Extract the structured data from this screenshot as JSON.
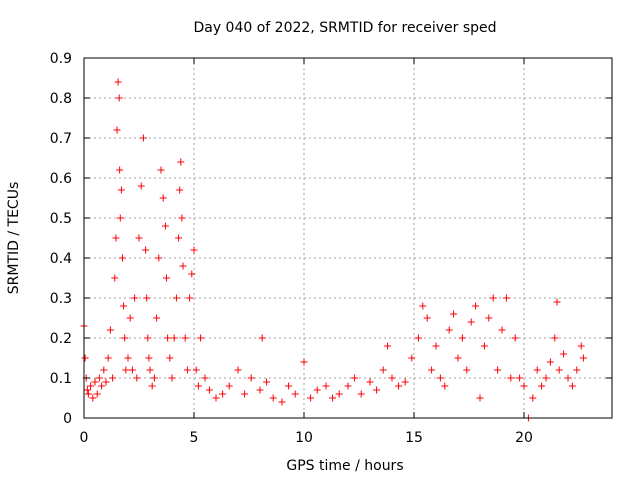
{
  "chart_data": {
    "type": "scatter",
    "title": "Day 040 of 2022, SRMTID for receiver sped",
    "xlabel": "GPS time / hours",
    "ylabel": "SRMTID / TECUs",
    "xlim": [
      0,
      24
    ],
    "ylim": [
      0,
      0.9
    ],
    "xticks": [
      0,
      5,
      10,
      15,
      20
    ],
    "xtick_labels": [
      "0",
      "5",
      "10",
      "15",
      "20"
    ],
    "yticks": [
      0,
      0.1,
      0.2,
      0.3,
      0.4,
      0.5,
      0.6,
      0.7,
      0.8,
      0.9
    ],
    "ytick_labels": [
      "0",
      "0.1",
      "0.2",
      "0.3",
      "0.4",
      "0.5",
      "0.6",
      "0.7",
      "0.8",
      "0.9"
    ],
    "grid": true,
    "marker": "+",
    "marker_color": "#ff0000",
    "series": [
      {
        "name": "sped",
        "x": [
          0.0,
          0.05,
          0.1,
          0.15,
          0.2,
          0.3,
          0.4,
          0.5,
          0.6,
          0.7,
          0.8,
          0.9,
          1.0,
          1.1,
          1.2,
          1.3,
          1.4,
          1.45,
          1.5,
          1.55,
          1.6,
          1.62,
          1.65,
          1.7,
          1.75,
          1.8,
          1.85,
          1.9,
          2.0,
          2.1,
          2.2,
          2.3,
          2.4,
          2.5,
          2.6,
          2.7,
          2.8,
          2.85,
          2.9,
          2.95,
          3.0,
          3.1,
          3.2,
          3.3,
          3.4,
          3.5,
          3.6,
          3.7,
          3.75,
          3.8,
          3.9,
          4.0,
          4.1,
          4.2,
          4.3,
          4.35,
          4.4,
          4.45,
          4.5,
          4.6,
          4.7,
          4.8,
          4.9,
          5.0,
          5.1,
          5.2,
          5.3,
          5.5,
          5.7,
          6.0,
          6.3,
          6.6,
          7.0,
          7.3,
          7.6,
          8.0,
          8.1,
          8.3,
          8.6,
          9.0,
          9.3,
          9.6,
          10.0,
          10.3,
          10.6,
          11.0,
          11.3,
          11.6,
          12.0,
          12.3,
          12.6,
          13.0,
          13.3,
          13.6,
          13.8,
          14.0,
          14.3,
          14.6,
          14.9,
          15.2,
          15.4,
          15.6,
          15.8,
          16.0,
          16.2,
          16.4,
          16.6,
          16.8,
          17.0,
          17.2,
          17.4,
          17.6,
          17.8,
          18.0,
          18.2,
          18.4,
          18.6,
          18.8,
          19.0,
          19.2,
          19.4,
          19.6,
          19.8,
          20.0,
          20.2,
          20.4,
          20.6,
          20.8,
          21.0,
          21.2,
          21.4,
          21.5,
          21.6,
          21.8,
          22.0,
          22.2,
          22.4,
          22.6,
          22.7
        ],
        "y": [
          0.23,
          0.15,
          0.1,
          0.07,
          0.06,
          0.08,
          0.05,
          0.09,
          0.06,
          0.1,
          0.08,
          0.12,
          0.09,
          0.15,
          0.22,
          0.1,
          0.35,
          0.45,
          0.72,
          0.84,
          0.8,
          0.62,
          0.5,
          0.57,
          0.4,
          0.28,
          0.2,
          0.12,
          0.15,
          0.25,
          0.12,
          0.3,
          0.1,
          0.45,
          0.58,
          0.7,
          0.42,
          0.3,
          0.2,
          0.15,
          0.12,
          0.08,
          0.1,
          0.25,
          0.4,
          0.62,
          0.55,
          0.48,
          0.35,
          0.2,
          0.15,
          0.1,
          0.2,
          0.3,
          0.45,
          0.57,
          0.64,
          0.5,
          0.38,
          0.2,
          0.12,
          0.3,
          0.36,
          0.42,
          0.12,
          0.08,
          0.2,
          0.1,
          0.07,
          0.05,
          0.06,
          0.08,
          0.12,
          0.06,
          0.1,
          0.07,
          0.2,
          0.09,
          0.05,
          0.04,
          0.08,
          0.06,
          0.14,
          0.05,
          0.07,
          0.08,
          0.05,
          0.06,
          0.08,
          0.1,
          0.06,
          0.09,
          0.07,
          0.12,
          0.18,
          0.1,
          0.08,
          0.09,
          0.15,
          0.2,
          0.28,
          0.25,
          0.12,
          0.18,
          0.1,
          0.08,
          0.22,
          0.26,
          0.15,
          0.2,
          0.12,
          0.24,
          0.28,
          0.05,
          0.18,
          0.25,
          0.3,
          0.12,
          0.22,
          0.3,
          0.1,
          0.2,
          0.1,
          0.08,
          0.0,
          0.05,
          0.12,
          0.08,
          0.1,
          0.14,
          0.2,
          0.29,
          0.12,
          0.16,
          0.1,
          0.08,
          0.12,
          0.18,
          0.15
        ]
      }
    ]
  }
}
